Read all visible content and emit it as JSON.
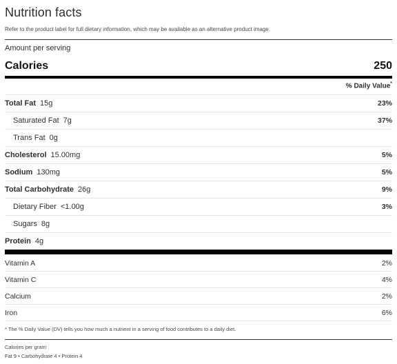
{
  "header": {
    "title": "Nutrition facts",
    "disclaimer": "Refer to the product label for full dietary information, which may be available as an alternative product image."
  },
  "serving": {
    "amount_label": "Amount per serving",
    "calories_label": "Calories",
    "calories_value": "250"
  },
  "dv_header": "% Daily Value",
  "dv_marker": "*",
  "nutrients": [
    {
      "label": "Total Fat",
      "amount": "15g",
      "dv": "23%"
    },
    {
      "label": "Saturated Fat",
      "amount": "7g",
      "dv": "37%"
    },
    {
      "label": "Trans Fat",
      "amount": "0g",
      "dv": ""
    },
    {
      "label": "Cholesterol",
      "amount": "15.00mg",
      "dv": "5%"
    },
    {
      "label": "Sodium",
      "amount": "130mg",
      "dv": "5%"
    },
    {
      "label": "Total Carbohydrate",
      "amount": "26g",
      "dv": "9%"
    },
    {
      "label": "Dietary Fiber",
      "amount": "<1.00g",
      "dv": "3%"
    },
    {
      "label": "Sugars",
      "amount": "8g",
      "dv": ""
    },
    {
      "label": "Protein",
      "amount": "4g",
      "dv": ""
    }
  ],
  "vitamins": [
    {
      "label": "Vitamin A",
      "dv": "2%"
    },
    {
      "label": "Vitamin C",
      "dv": "4%"
    },
    {
      "label": "Calcium",
      "dv": "2%"
    },
    {
      "label": "Iron",
      "dv": "6%"
    }
  ],
  "footnote": "* The % Daily Value (DV) tells you how much a nutrient in a serving of food contributes to a daily diet.",
  "calories_per_gram": {
    "label": "Calories per gram:",
    "values": "Fat 9 • Carbohydrate 4 • Protein 4"
  }
}
